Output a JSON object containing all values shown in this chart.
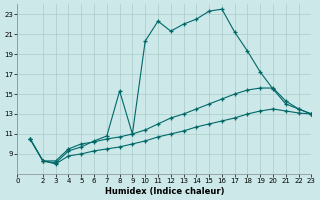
{
  "xlabel": "Humidex (Indice chaleur)",
  "background_color": "#cce8e8",
  "grid_color": "#aacccc",
  "line_color": "#006868",
  "xlim": [
    0,
    23
  ],
  "ylim": [
    7,
    24
  ],
  "yticks": [
    9,
    11,
    13,
    15,
    17,
    19,
    21,
    23
  ],
  "xticks": [
    0,
    2,
    3,
    4,
    5,
    6,
    7,
    8,
    9,
    10,
    11,
    12,
    13,
    14,
    15,
    16,
    17,
    18,
    19,
    20,
    21,
    22,
    23
  ],
  "line1_x": [
    1,
    2,
    3,
    4,
    5,
    6,
    7,
    8,
    9,
    10,
    11,
    12,
    13,
    14,
    15,
    16,
    17,
    18,
    19,
    20,
    21,
    22,
    23
  ],
  "line1_y": [
    10.5,
    8.3,
    8.1,
    9.3,
    9.7,
    10.3,
    10.8,
    15.3,
    11.0,
    20.3,
    22.3,
    21.3,
    22.0,
    22.5,
    23.3,
    23.5,
    21.2,
    19.3,
    17.2,
    15.5,
    14.0,
    13.5,
    13.0
  ],
  "line2_x": [
    1,
    2,
    3,
    4,
    5,
    6,
    7,
    8,
    9,
    10,
    11,
    12,
    13,
    14,
    15,
    16,
    17,
    18,
    19,
    20,
    21,
    22,
    23
  ],
  "line2_y": [
    10.5,
    8.3,
    8.3,
    9.5,
    10.0,
    10.2,
    10.5,
    10.7,
    11.0,
    11.4,
    12.0,
    12.6,
    13.0,
    13.5,
    14.0,
    14.5,
    15.0,
    15.4,
    15.6,
    15.6,
    14.3,
    13.5,
    13.0
  ],
  "line3_x": [
    1,
    2,
    3,
    4,
    5,
    6,
    7,
    8,
    9,
    10,
    11,
    12,
    13,
    14,
    15,
    16,
    17,
    18,
    19,
    20,
    21,
    22,
    23
  ],
  "line3_y": [
    10.5,
    8.3,
    8.0,
    8.8,
    9.0,
    9.3,
    9.5,
    9.7,
    10.0,
    10.3,
    10.7,
    11.0,
    11.3,
    11.7,
    12.0,
    12.3,
    12.6,
    13.0,
    13.3,
    13.5,
    13.3,
    13.1,
    13.0
  ],
  "xlabel_fontsize": 6,
  "tick_labelsize": 5
}
